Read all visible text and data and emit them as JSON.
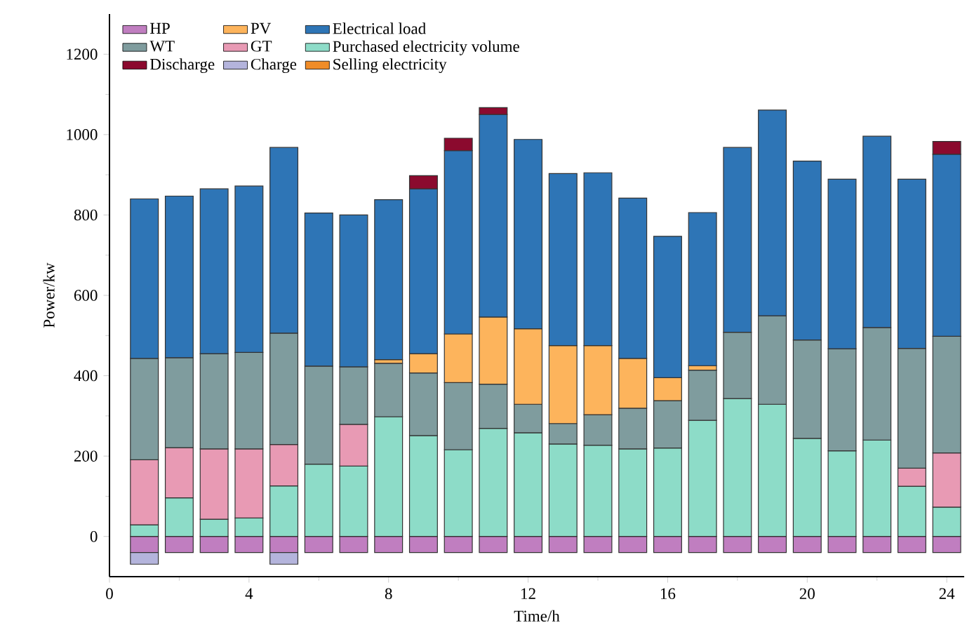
{
  "chart_data": {
    "type": "bar",
    "stacked": true,
    "xlabel": "Time/h",
    "ylabel": "Power/kw",
    "x": [
      1,
      2,
      3,
      4,
      5,
      6,
      7,
      8,
      9,
      10,
      11,
      12,
      13,
      14,
      15,
      16,
      17,
      18,
      19,
      20,
      21,
      22,
      23,
      24
    ],
    "xlim": [
      0,
      24.5
    ],
    "xticks": [
      0,
      4,
      8,
      12,
      16,
      20,
      24
    ],
    "ylim": [
      -100,
      1300
    ],
    "yticks": [
      0,
      200,
      400,
      600,
      800,
      1000,
      1200
    ],
    "legend": "top left",
    "grid": false,
    "series": [
      {
        "name": "HP",
        "color": "#c07ec0",
        "values": [
          -40,
          -40,
          -40,
          -40,
          -40,
          -40,
          -40,
          -40,
          -40,
          -40,
          -40,
          -40,
          -40,
          -40,
          -40,
          -40,
          -40,
          -40,
          -40,
          -40,
          -40,
          -40,
          -40,
          -40
        ]
      },
      {
        "name": "Charge",
        "color": "#b4b4dc",
        "values": [
          -29,
          null,
          null,
          null,
          -29,
          null,
          null,
          null,
          null,
          null,
          null,
          null,
          null,
          null,
          null,
          null,
          null,
          null,
          null,
          null,
          null,
          null,
          null,
          null
        ]
      },
      {
        "name": "Purchased electricity volume",
        "color": "#8ddcc8",
        "values": [
          29,
          96,
          43,
          46,
          126,
          180,
          175,
          298,
          251,
          216,
          269,
          258,
          230,
          227,
          218,
          220,
          289,
          343,
          329,
          244,
          213,
          240,
          125,
          73
        ]
      },
      {
        "name": "GT",
        "color": "#e89ab4",
        "values": [
          162,
          125,
          175,
          172,
          103,
          null,
          104,
          null,
          null,
          null,
          null,
          null,
          null,
          null,
          null,
          null,
          null,
          null,
          null,
          null,
          null,
          null,
          45,
          135
        ]
      },
      {
        "name": "WT",
        "color": "#7f9c9e",
        "values": [
          252,
          224,
          237,
          240,
          277,
          244,
          143,
          133,
          156,
          167,
          110,
          71,
          51,
          76,
          101,
          118,
          125,
          165,
          220,
          245,
          254,
          280,
          298,
          290
        ]
      },
      {
        "name": "PV",
        "color": "#fdb45c",
        "values": [
          null,
          null,
          null,
          null,
          null,
          null,
          null,
          9,
          48,
          121,
          167,
          188,
          194,
          172,
          124,
          57,
          11,
          null,
          null,
          null,
          null,
          null,
          null,
          null
        ]
      },
      {
        "name": "Selling electricity",
        "color": "#f08c28",
        "values": [
          null,
          null,
          null,
          null,
          null,
          null,
          null,
          null,
          null,
          null,
          null,
          null,
          null,
          null,
          null,
          null,
          null,
          null,
          null,
          null,
          null,
          null,
          null,
          null
        ]
      },
      {
        "name": "Electrical load",
        "color": "#2e75b6",
        "values": [
          397,
          402,
          410,
          414,
          462,
          381,
          378,
          398,
          410,
          456,
          504,
          471,
          428,
          430,
          399,
          352,
          381,
          460,
          512,
          445,
          422,
          476,
          421,
          453
        ]
      },
      {
        "name": "Discharge",
        "color": "#8b0a2e",
        "values": [
          null,
          null,
          null,
          null,
          null,
          null,
          null,
          null,
          33,
          31,
          17,
          null,
          null,
          null,
          null,
          null,
          null,
          null,
          null,
          null,
          null,
          null,
          null,
          32
        ]
      }
    ]
  }
}
